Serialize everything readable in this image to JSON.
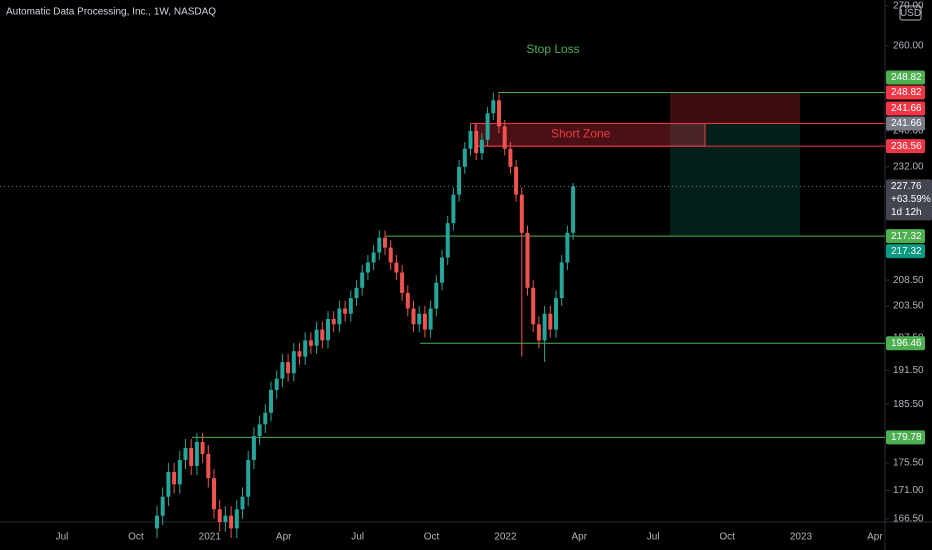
{
  "chart_data": {
    "type": "candlestick",
    "title": "Automatic Data Processing, Inc., 1W, NASDAQ",
    "currency": "USD",
    "log_scale": true,
    "up_color": "#26a69a",
    "down_color": "#ef5350",
    "time_labels": [
      "Jul",
      "Oct",
      "2021",
      "Apr",
      "Jul",
      "Oct",
      "2022",
      "Apr",
      "Jul",
      "Oct",
      "2023",
      "Apr"
    ],
    "ylim": [
      166,
      271.5
    ],
    "yticks": [
      {
        "value": 270,
        "label": "270.00"
      },
      {
        "value": 260,
        "label": "260.00"
      },
      {
        "value": 240,
        "label": "240.00"
      },
      {
        "value": 232,
        "label": "232.00"
      },
      {
        "value": 208.5,
        "label": "208.50"
      },
      {
        "value": 203.5,
        "label": "203.50"
      },
      {
        "value": 197.5,
        "label": "197.50"
      },
      {
        "value": 191.5,
        "label": "191.50"
      },
      {
        "value": 185.5,
        "label": "185.50"
      },
      {
        "value": 175.5,
        "label": "175.50"
      },
      {
        "value": 171,
        "label": "171.00"
      },
      {
        "value": 166.5,
        "label": "166.50"
      }
    ],
    "open": [
      165,
      167,
      170,
      174,
      172,
      176,
      178,
      175,
      179,
      177,
      173,
      168,
      166,
      167,
      165,
      168,
      170,
      176,
      180,
      182,
      184,
      188,
      190,
      193,
      191,
      195,
      194,
      197,
      196,
      199,
      197,
      201,
      200,
      203,
      202,
      205,
      207,
      210,
      212,
      214,
      217,
      215,
      212,
      210,
      206,
      203,
      200,
      202,
      199,
      203,
      208,
      213,
      220,
      226,
      232,
      236,
      240,
      235,
      238,
      244,
      247,
      241,
      236,
      232,
      226,
      218,
      207,
      200,
      197,
      202,
      199,
      205,
      212,
      218
    ],
    "high": [
      168.5,
      171.5,
      175.5,
      175.5,
      177.5,
      179.5,
      179.5,
      180.5,
      180.5,
      178.5,
      174.5,
      169.5,
      168.5,
      168.5,
      169.5,
      171.5,
      177.5,
      181.5,
      183.5,
      185.5,
      189.5,
      191.5,
      194.5,
      194.5,
      196.5,
      196.5,
      198.5,
      198.5,
      200.5,
      200.5,
      202.5,
      202.5,
      204.5,
      204.5,
      206.5,
      208.5,
      211.5,
      213.5,
      215.5,
      218.5,
      218.5,
      216.5,
      213.5,
      211.5,
      207.5,
      204.5,
      203.5,
      203.5,
      204.5,
      209.5,
      214.5,
      221.5,
      227.5,
      233.5,
      237.5,
      241.5,
      241.5,
      239.5,
      245.5,
      248.82,
      248.5,
      242.5,
      237.5,
      233.5,
      227.5,
      219.5,
      208.5,
      201.5,
      203.5,
      203.5,
      206.5,
      213.5,
      219.5,
      228.5
    ],
    "low": [
      163.5,
      165.5,
      168.5,
      170.5,
      170.5,
      174.5,
      173.5,
      173.5,
      175.5,
      171.5,
      166.5,
      164.5,
      164.5,
      163.5,
      163.5,
      166.5,
      168.5,
      174.5,
      178.5,
      180.5,
      182.5,
      186.5,
      188.5,
      189.5,
      189.5,
      192.5,
      192.5,
      194.5,
      194.5,
      195.5,
      195.5,
      198.5,
      198.5,
      200.5,
      200.5,
      203.5,
      205.5,
      208.5,
      210.5,
      212.5,
      213.5,
      210.5,
      208.5,
      204.5,
      201.5,
      198.5,
      198.5,
      197.5,
      197.5,
      201.5,
      206.5,
      211.5,
      218.5,
      224.5,
      230.5,
      234.5,
      233.5,
      233.5,
      236.5,
      242.5,
      239.5,
      234.5,
      230.5,
      224.5,
      194,
      205.5,
      198.5,
      195.5,
      193,
      197.5,
      197.5,
      203.5,
      210.5,
      216.5
    ],
    "close": [
      167,
      170,
      174,
      172,
      176,
      178,
      175,
      179,
      177,
      173,
      168,
      166,
      167,
      165,
      168,
      170,
      176,
      180,
      182,
      184,
      188,
      190,
      193,
      191,
      195,
      194,
      197,
      196,
      199,
      197,
      201,
      200,
      203,
      202,
      205,
      207,
      210,
      212,
      214,
      217,
      215,
      212,
      210,
      206,
      203,
      200,
      202,
      199,
      203,
      208,
      213,
      220,
      226,
      232,
      236,
      240,
      235,
      238,
      244,
      247,
      241,
      236,
      232,
      226,
      218,
      207,
      200,
      197,
      202,
      199,
      205,
      212,
      218,
      227.76
    ],
    "levels": [
      {
        "value": 248.82,
        "color": "#4caf50"
      },
      {
        "value": 241.66,
        "color": "#f23645"
      },
      {
        "value": 236.56,
        "color": "#f23645"
      },
      {
        "value": 217.32,
        "color": "#4caf50"
      },
      {
        "value": 196.46,
        "color": "#4caf50"
      },
      {
        "value": 179.78,
        "color": "#4caf50"
      }
    ],
    "short_zone": {
      "label": "Short Zone",
      "top": 241.66,
      "bottom": 236.56,
      "color": "#f23645"
    },
    "position": {
      "label": "Stop Loss",
      "stop": 248.82,
      "entry": 241.66,
      "target": 217.32
    },
    "price_tags": [
      {
        "value": 248.82,
        "color": "#4caf50"
      },
      {
        "value": 248.82,
        "color": "#f23645"
      },
      {
        "value": 241.66,
        "color": "#f23645"
      },
      {
        "value": 241.66,
        "color": "#787b86"
      },
      {
        "value": 236.56,
        "color": "#f23645"
      },
      {
        "value": 217.32,
        "color": "#4caf50"
      },
      {
        "value": 217.32,
        "color": "#089981"
      },
      {
        "value": 196.46,
        "color": "#4caf50"
      },
      {
        "value": 179.78,
        "color": "#4caf50"
      }
    ],
    "last_price": 227.76,
    "change_label": "+63.59%",
    "countdown": "1d 12h"
  }
}
